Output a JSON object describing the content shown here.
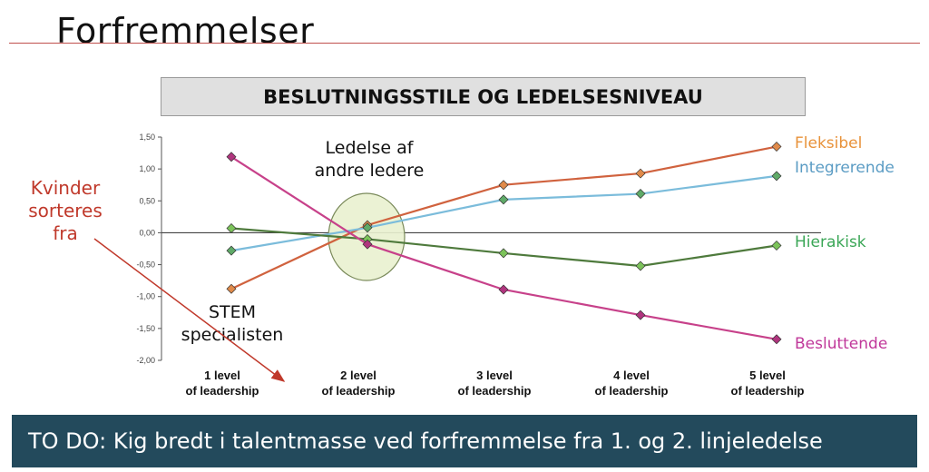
{
  "slide": {
    "title": "Forfremmelser",
    "banner": "TO DO: Kig bredt i talentmasse ved forfremmelse fra 1. og 2. linjeledelse"
  },
  "chart_data": {
    "type": "line",
    "title": "BESLUTNINGSSTILE OG LEDELSESNIVEAU",
    "categories": [
      [
        "1 level",
        "of leadership"
      ],
      [
        "2 level",
        "of leadership"
      ],
      [
        "3 level",
        "of leadership"
      ],
      [
        "4 level",
        "of leadership"
      ],
      [
        "5 level",
        "of leadership"
      ]
    ],
    "ylim": [
      -2.0,
      1.5
    ],
    "yticks": [
      1.5,
      1.0,
      0.5,
      0.0,
      -0.5,
      -1.0,
      -1.5,
      -2.0
    ],
    "ytick_labels": [
      "1,50",
      "1,00",
      "0,50",
      "0,00",
      "-0,50",
      "-1,00",
      "-1,50",
      "-2,00"
    ],
    "grid": false,
    "legend": "right",
    "series": [
      {
        "name": "Fleksibel",
        "values": [
          -0.88,
          0.12,
          0.75,
          0.93,
          1.35
        ],
        "color": "#d0623e",
        "marker": "#e08a4a",
        "label_color": "#e8923a"
      },
      {
        "name": "Integrerende",
        "values": [
          -0.28,
          0.08,
          0.52,
          0.61,
          0.89
        ],
        "color": "#7bbcdb",
        "marker": "#5faa68",
        "label_color": "#5b9cc4"
      },
      {
        "name": "Hierakisk",
        "values": [
          0.07,
          -0.1,
          -0.32,
          -0.52,
          -0.2
        ],
        "color": "#4e7a3c",
        "marker": "#7cc35a",
        "label_color": "#3aa656"
      },
      {
        "name": "Besluttende",
        "values": [
          1.19,
          -0.18,
          -0.89,
          -1.29,
          -1.67
        ],
        "color": "#c7418a",
        "marker": "#b0347e",
        "label_color": "#c0389a"
      }
    ],
    "annotations": {
      "ledelse": [
        "Ledelse af",
        "andre ledere"
      ],
      "stem": [
        "STEM",
        "specialisten"
      ],
      "kvinder": [
        "Kvinder",
        "sorteres",
        "fra"
      ]
    }
  }
}
